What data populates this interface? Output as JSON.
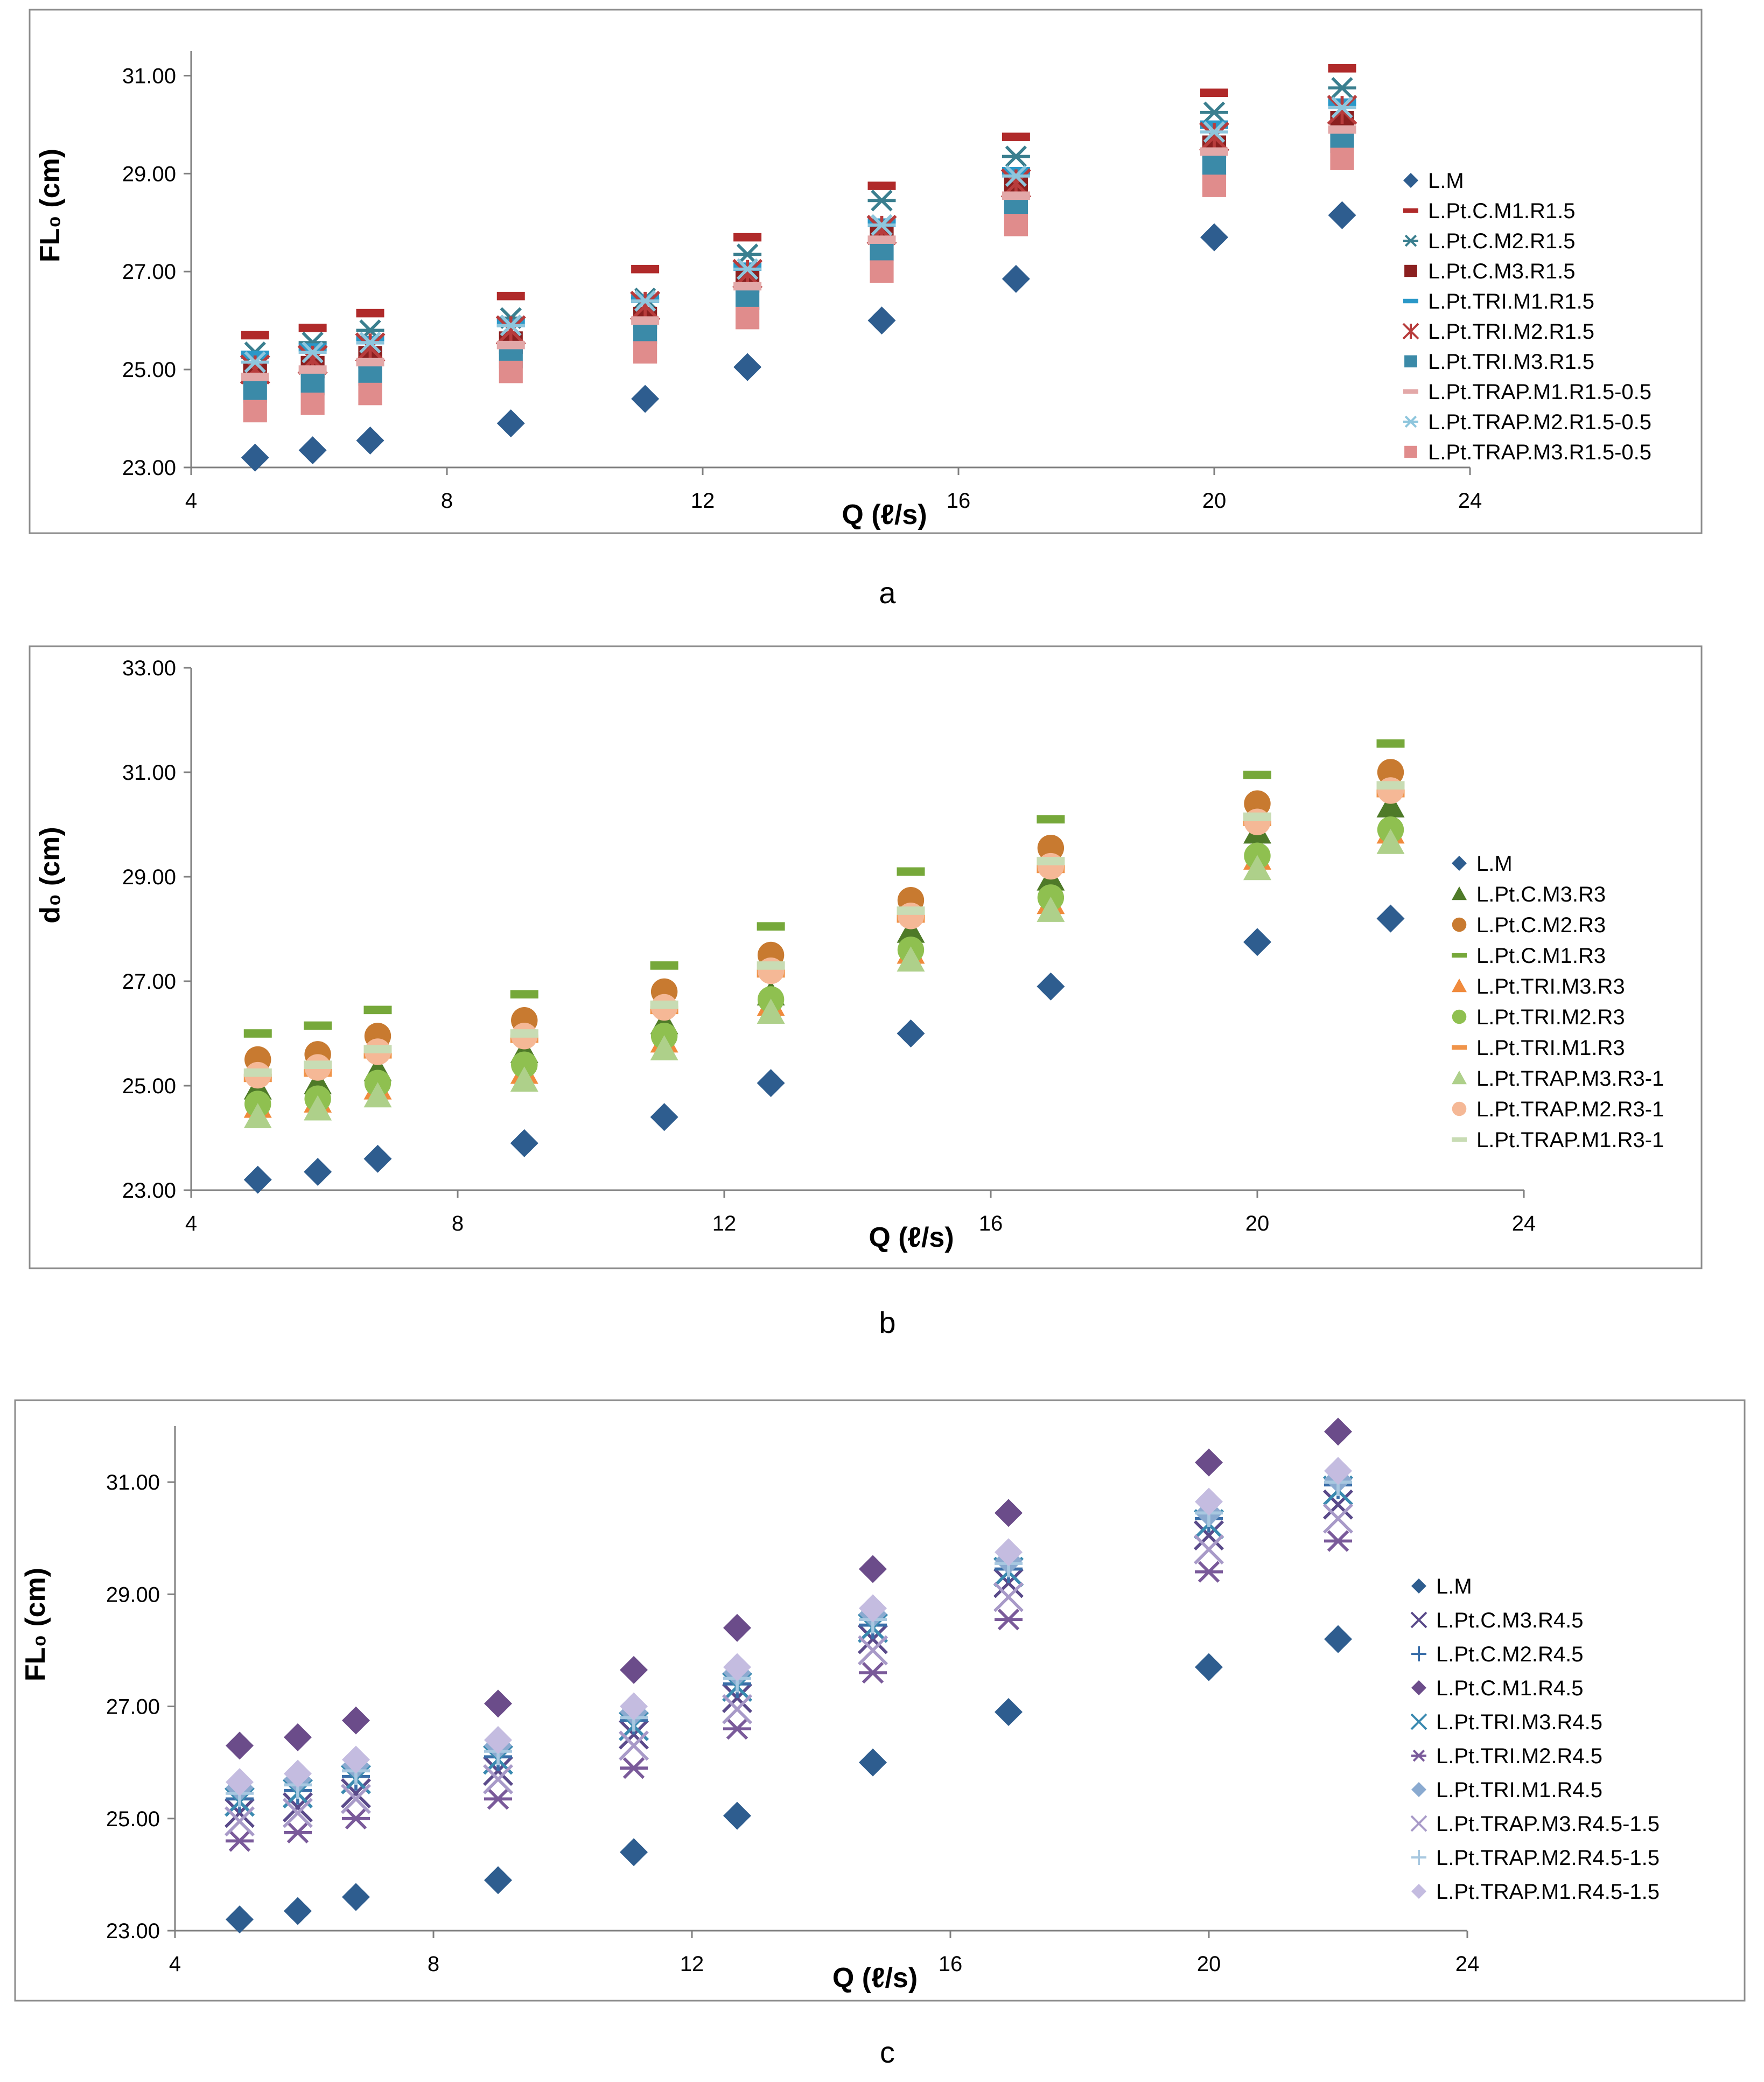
{
  "chart_data": [
    {
      "type": "scatter",
      "panel_label": "a",
      "xlabel": "Q (ℓ/s)",
      "ylabel": "FL₀ (cm)",
      "xlim": [
        4,
        24
      ],
      "ylim": [
        23,
        31.5
      ],
      "xticks": [
        4,
        8,
        12,
        16,
        20,
        24
      ],
      "yticks": [
        23,
        25,
        27,
        29,
        31
      ],
      "x": [
        5.0,
        5.9,
        6.8,
        9.0,
        11.1,
        12.7,
        14.8,
        16.9,
        20.0,
        22.0
      ],
      "legend_position": "right",
      "series": [
        {
          "name": "L.M",
          "marker": "diamond",
          "color": "#2e5d8f",
          "values": [
            23.2,
            23.35,
            23.55,
            23.9,
            24.4,
            25.05,
            26.0,
            26.85,
            27.7,
            28.15
          ]
        },
        {
          "name": "L.Pt.C.M1.R1.5",
          "marker": "dash",
          "color": "#b02a2a",
          "values": [
            25.7,
            25.85,
            26.15,
            26.5,
            27.05,
            27.7,
            28.75,
            29.75,
            30.65,
            31.15
          ]
        },
        {
          "name": "L.Pt.C.M2.R1.5",
          "marker": "asterisk",
          "color": "#3a7f8f",
          "values": [
            25.35,
            25.55,
            25.8,
            26.05,
            26.45,
            27.35,
            28.45,
            29.35,
            30.25,
            30.75
          ]
        },
        {
          "name": "L.Pt.C.M3.R1.5",
          "marker": "square",
          "color": "#8b2020",
          "values": [
            24.95,
            25.05,
            25.25,
            25.55,
            26.05,
            26.8,
            27.75,
            28.7,
            29.55,
            30.05
          ]
        },
        {
          "name": "L.Pt.TRI.M1.R1.5",
          "marker": "dash",
          "color": "#2a98c8",
          "values": [
            25.3,
            25.45,
            25.6,
            25.95,
            26.45,
            27.1,
            28.0,
            29.05,
            30.0,
            30.45
          ]
        },
        {
          "name": "L.Pt.TRI.M2.R1.5",
          "marker": "xstar",
          "color": "#b83c3c",
          "values": [
            25.0,
            25.2,
            25.45,
            25.8,
            26.3,
            26.95,
            27.85,
            28.8,
            29.75,
            30.3
          ]
        },
        {
          "name": "L.Pt.TRI.M3.R1.5",
          "marker": "square",
          "color": "#3b8aa8",
          "values": [
            24.55,
            24.7,
            24.9,
            25.25,
            25.75,
            26.45,
            27.45,
            28.35,
            29.2,
            29.65
          ]
        },
        {
          "name": "L.Pt.TRAP.M1.R1.5-0.5",
          "marker": "dash",
          "color": "#e3a8a8",
          "values": [
            24.85,
            25.0,
            25.15,
            25.5,
            26.0,
            26.7,
            27.65,
            28.55,
            29.45,
            29.9
          ]
        },
        {
          "name": "L.Pt.TRAP.M2.R1.5-0.5",
          "marker": "asterisk",
          "color": "#8ec6dd",
          "values": [
            25.15,
            25.35,
            25.55,
            25.9,
            26.4,
            27.05,
            27.95,
            28.95,
            29.85,
            30.35
          ]
        },
        {
          "name": "L.Pt.TRAP.M3.R1.5-0.5",
          "marker": "square",
          "color": "#e08c8c",
          "values": [
            24.15,
            24.3,
            24.5,
            24.95,
            25.35,
            26.05,
            27.0,
            27.95,
            28.75,
            29.3
          ]
        }
      ]
    },
    {
      "type": "scatter",
      "panel_label": "b",
      "xlabel": "Q (ℓ/s)",
      "ylabel": "d₀ (cm)",
      "xlim": [
        4,
        24
      ],
      "ylim": [
        23,
        33
      ],
      "xticks": [
        4,
        8,
        12,
        16,
        20,
        24
      ],
      "yticks": [
        23,
        25,
        27,
        29,
        31,
        33
      ],
      "x": [
        5.0,
        5.9,
        6.8,
        9.0,
        11.1,
        12.7,
        14.8,
        16.9,
        20.0,
        22.0
      ],
      "legend_position": "right",
      "series": [
        {
          "name": "L.M",
          "marker": "diamond",
          "color": "#2e5d8f",
          "values": [
            23.2,
            23.35,
            23.6,
            23.9,
            24.4,
            25.05,
            26.0,
            26.9,
            27.75,
            28.2
          ]
        },
        {
          "name": "L.Pt.C.M3.R3",
          "marker": "triangle",
          "color": "#4e7a28",
          "values": [
            24.95,
            25.05,
            25.3,
            25.65,
            26.2,
            26.75,
            27.95,
            28.95,
            29.85,
            30.35
          ]
        },
        {
          "name": "L.Pt.C.M2.R3",
          "marker": "circle",
          "color": "#c87a30",
          "values": [
            25.5,
            25.6,
            25.95,
            26.25,
            26.8,
            27.5,
            28.55,
            29.55,
            30.4,
            31.0
          ]
        },
        {
          "name": "L.Pt.C.M1.R3",
          "marker": "dash",
          "color": "#76a83a",
          "values": [
            26.0,
            26.15,
            26.45,
            26.75,
            27.3,
            28.05,
            29.1,
            30.1,
            30.95,
            31.55
          ]
        },
        {
          "name": "L.Pt.TRI.M3.R3",
          "marker": "triangle",
          "color": "#f08a3c",
          "values": [
            24.6,
            24.7,
            24.95,
            25.25,
            25.85,
            26.55,
            27.55,
            28.5,
            29.35,
            29.85
          ]
        },
        {
          "name": "L.Pt.TRI.M2.R3",
          "marker": "circle",
          "color": "#8fc050",
          "values": [
            24.65,
            24.75,
            25.05,
            25.4,
            25.95,
            26.65,
            27.6,
            28.6,
            29.4,
            29.9
          ]
        },
        {
          "name": "L.Pt.TRI.M1.R3",
          "marker": "dash",
          "color": "#f0944a",
          "values": [
            25.15,
            25.25,
            25.6,
            25.9,
            26.45,
            27.15,
            28.2,
            29.15,
            30.05,
            30.6
          ]
        },
        {
          "name": "L.Pt.TRAP.M3.R3-1",
          "marker": "triangle",
          "color": "#aed08a",
          "values": [
            24.4,
            24.55,
            24.8,
            25.1,
            25.7,
            26.4,
            27.4,
            28.35,
            29.15,
            29.65
          ]
        },
        {
          "name": "L.Pt.TRAP.M2.R3-1",
          "marker": "circle",
          "color": "#f5b896",
          "values": [
            25.2,
            25.35,
            25.65,
            25.95,
            26.5,
            27.2,
            28.25,
            29.2,
            30.05,
            30.65
          ]
        },
        {
          "name": "L.Pt.TRAP.M1.R3-1",
          "marker": "dash",
          "color": "#c8dcb4",
          "values": [
            25.25,
            25.4,
            25.7,
            26.0,
            26.55,
            27.3,
            28.35,
            29.3,
            30.15,
            30.75
          ]
        }
      ]
    },
    {
      "type": "scatter",
      "panel_label": "c",
      "xlabel": "Q (ℓ/s)",
      "ylabel": "FL₀ (cm)",
      "xlim": [
        4,
        24
      ],
      "ylim": [
        23,
        32
      ],
      "xticks": [
        4,
        8,
        12,
        16,
        20,
        24
      ],
      "yticks": [
        23,
        25,
        27,
        29,
        31
      ],
      "x": [
        5.0,
        5.9,
        6.8,
        9.0,
        11.1,
        12.7,
        14.8,
        16.9,
        20.0,
        22.0
      ],
      "legend_position": "right",
      "series": [
        {
          "name": "L.M",
          "marker": "diamond",
          "color": "#2e5d8f",
          "values": [
            23.2,
            23.35,
            23.6,
            23.9,
            24.4,
            25.05,
            26.0,
            26.9,
            27.7,
            28.2
          ]
        },
        {
          "name": "L.Pt.C.M3.R4.5",
          "marker": "x",
          "color": "#5a4a8a",
          "values": [
            25.1,
            25.2,
            25.45,
            25.85,
            26.5,
            27.15,
            28.2,
            29.2,
            30.05,
            30.6
          ]
        },
        {
          "name": "L.Pt.C.M2.R4.5",
          "marker": "plus",
          "color": "#3a6ea8",
          "values": [
            25.35,
            25.5,
            25.75,
            26.1,
            26.75,
            27.4,
            28.45,
            29.45,
            30.35,
            30.95
          ]
        },
        {
          "name": "L.Pt.C.M1.R4.5",
          "marker": "diamond",
          "color": "#6b4c8a",
          "values": [
            26.3,
            26.45,
            26.75,
            27.05,
            27.65,
            28.4,
            29.45,
            30.45,
            31.35,
            31.9
          ]
        },
        {
          "name": "L.Pt.TRI.M3.R4.5",
          "marker": "x",
          "color": "#3a8ab0",
          "values": [
            25.3,
            25.45,
            25.7,
            26.05,
            26.65,
            27.35,
            28.4,
            29.4,
            30.25,
            30.85
          ]
        },
        {
          "name": "L.Pt.TRI.M2.R4.5",
          "marker": "asterisk",
          "color": "#7a5a9a",
          "values": [
            24.6,
            24.75,
            25.0,
            25.35,
            25.9,
            26.6,
            27.6,
            28.55,
            29.4,
            29.95
          ]
        },
        {
          "name": "L.Pt.TRI.M1.R4.5",
          "marker": "diamond",
          "color": "#8aaad0",
          "values": [
            25.55,
            25.7,
            25.95,
            26.3,
            26.9,
            27.6,
            28.65,
            29.6,
            30.45,
            31.05
          ]
        },
        {
          "name": "L.Pt.TRAP.M3.R4.5-1.5",
          "marker": "x",
          "color": "#a89ac8",
          "values": [
            24.95,
            25.1,
            25.35,
            25.7,
            26.3,
            26.95,
            28.0,
            28.95,
            29.8,
            30.35
          ]
        },
        {
          "name": "L.Pt.TRAP.M2.R4.5-1.5",
          "marker": "plus",
          "color": "#a8c8e0",
          "values": [
            25.45,
            25.6,
            25.85,
            26.2,
            26.8,
            27.5,
            28.55,
            29.55,
            30.45,
            31.0
          ]
        },
        {
          "name": "L.Pt.TRAP.M1.R4.5-1.5",
          "marker": "diamond",
          "color": "#c4bce0",
          "values": [
            25.65,
            25.8,
            26.05,
            26.4,
            27.0,
            27.7,
            28.75,
            29.75,
            30.65,
            31.2
          ]
        }
      ]
    }
  ]
}
